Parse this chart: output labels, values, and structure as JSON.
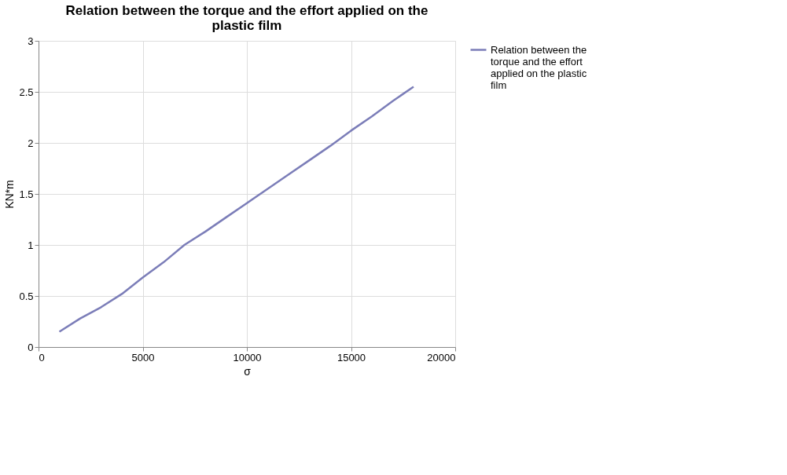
{
  "chart_data": {
    "type": "line",
    "title": "Relation between the torque and the effort applied on the plastic film",
    "xlabel": "σ",
    "ylabel": "KN*m",
    "x": [
      1000,
      2000,
      3000,
      4000,
      5000,
      6000,
      7000,
      8000,
      9000,
      10000,
      11000,
      12000,
      13000,
      14000,
      15000,
      16000,
      17000,
      18000
    ],
    "series": [
      {
        "name": "Relation between the torque and the effort applied on the plastic film",
        "color": "#7b7db8",
        "values": [
          0.15,
          0.28,
          0.39,
          0.52,
          0.68,
          0.83,
          1.0,
          1.13,
          1.27,
          1.41,
          1.55,
          1.69,
          1.83,
          1.97,
          2.12,
          2.26,
          2.41,
          2.55
        ]
      }
    ],
    "xlim": [
      0,
      20000
    ],
    "xticks": [
      0,
      5000,
      10000,
      15000,
      20000
    ],
    "ylim": [
      0,
      3
    ],
    "yticks": [
      0,
      0.5,
      1,
      1.5,
      2,
      2.5,
      3
    ],
    "grid": true,
    "legend": "right",
    "marker": "none",
    "line_style": "solid"
  }
}
